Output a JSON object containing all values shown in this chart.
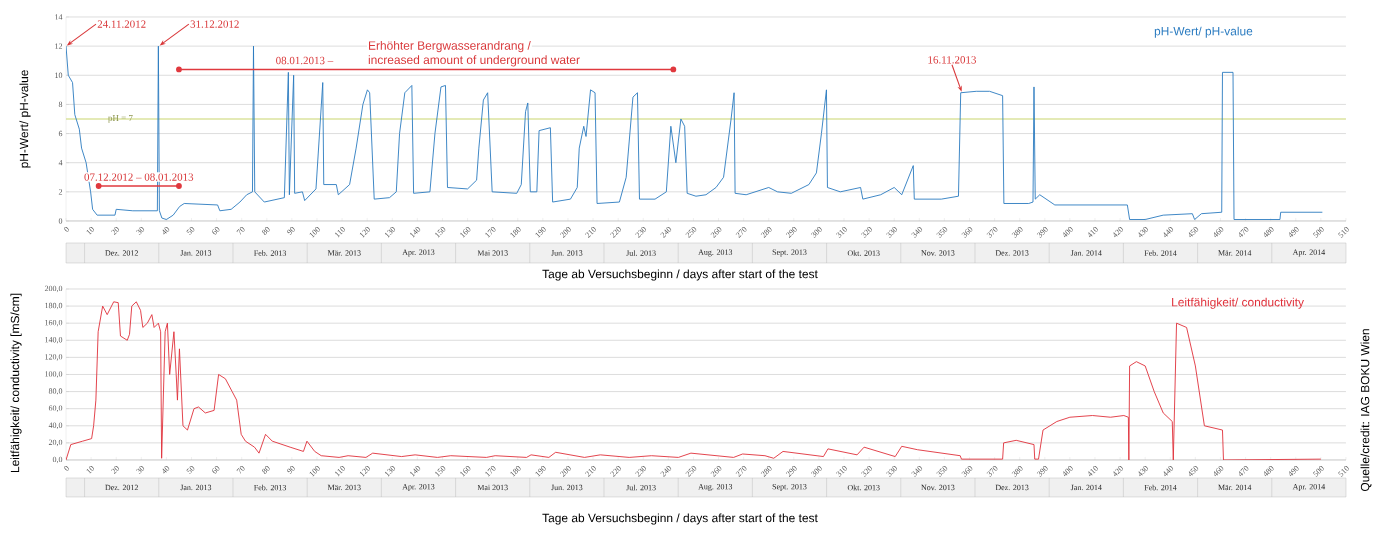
{
  "chart_data": [
    {
      "type": "line",
      "ylabel": "pH-Wert/ pH-value",
      "xlabel": "Tage ab Versuchsbeginn / days after start of the test",
      "xlim": [
        0,
        510
      ],
      "xticks": [
        0,
        10,
        20,
        30,
        40,
        50,
        60,
        70,
        80,
        90,
        100,
        110,
        120,
        130,
        140,
        150,
        160,
        170,
        180,
        190,
        200,
        210,
        220,
        230,
        240,
        250,
        260,
        270,
        280,
        290,
        300,
        310,
        320,
        330,
        340,
        350,
        360,
        370,
        380,
        390,
        400,
        410,
        420,
        430,
        440,
        450,
        460,
        470,
        480,
        490,
        500,
        510
      ],
      "ylim": [
        0,
        14
      ],
      "yticks": [
        0,
        2,
        4,
        6,
        8,
        10,
        12,
        14
      ],
      "grid": "y",
      "ref_lines": [
        {
          "axis": "y",
          "value": 7,
          "label": "pH = 7",
          "color": "#c9d66f"
        }
      ],
      "annotations": [
        {
          "text": "24.11.2012",
          "x": 0,
          "y": 12
        },
        {
          "text": "31.12.2012",
          "x": 37,
          "y": 12
        },
        {
          "text": "16.11.2013",
          "x": 357,
          "y": 8.8
        },
        {
          "text": "07.12.2012 – 08.01.2013",
          "x": 29,
          "y": 2.4
        },
        {
          "text": "08.01.2013 –",
          "x": 95,
          "y": 10.4
        },
        "Erhöhter Bergwasserandrang /",
        "increased amount of underground water",
        "Dez. 2012",
        "Jan. 2013",
        "Feb. 2013",
        "Mär. 2013",
        "Apr. 2013",
        "Mai 2013",
        "Jun. 2013",
        "Jul. 2013",
        "Aug. 2013",
        "Sept. 2013",
        "Okt. 2013",
        "Nov. 2013",
        "Dez. 2013",
        "Jan. 2014",
        "Feb. 2014",
        "Mär. 2014",
        "Apr. 2014"
      ],
      "series": [
        {
          "name": "pH-Wert/ pH-value",
          "color": "#2a7bc0",
          "x": [
            0,
            0.9,
            2.6,
            3.5,
            5.3,
            6.2,
            8,
            9.8,
            10.6,
            12.4,
            19.5,
            20,
            26.6,
            36.4,
            36.8,
            37.2,
            38.2,
            40,
            42.7,
            45.3,
            47.1,
            60.4,
            61.3,
            65.8,
            69.3,
            72,
            74.3,
            74.7,
            75.2,
            79,
            87,
            88.6,
            89,
            90.7,
            91.1,
            94.2,
            95.1,
            99.6,
            102.3,
            102.7,
            107.7,
            108.5,
            113,
            115.6,
            118.3,
            120.1,
            121,
            122.8,
            128.9,
            131.6,
            132.9,
            135,
            137.8,
            138.5,
            145,
            147,
            149.4,
            151.2,
            152,
            160,
            163.6,
            164.5,
            166.3,
            168,
            169.8,
            179.6,
            181.4,
            183.1,
            184,
            185,
            187.6,
            188.5,
            193,
            193.9,
            201,
            203.7,
            204.5,
            206.3,
            207.2,
            209,
            210.8,
            211.6,
            220.5,
            223.2,
            225.9,
            227.7,
            228.5,
            234.7,
            239.2,
            241,
            243,
            245,
            246.5,
            247.5,
            251,
            255,
            259,
            262,
            265,
            266.2,
            266.6,
            271,
            280,
            283.5,
            289,
            296,
            299,
            301,
            303,
            303.4,
            308.5,
            316.6,
            317.5,
            324.6,
            330,
            333,
            337.6,
            338,
            348.8,
            355.6,
            356.5,
            362.7,
            368,
            373.2,
            373.7,
            383.6,
            385.3,
            385.7,
            386.2,
            388,
            394,
            422.9,
            423.8,
            430,
            437.2,
            448.8,
            449.7,
            452.4,
            460.5,
            460.8,
            465,
            465.4,
            483.7,
            484,
            500.6
          ],
          "values": [
            12,
            10,
            9.5,
            7.3,
            6.3,
            5,
            4,
            2,
            0.8,
            0.4,
            0.4,
            0.8,
            0.7,
            0.7,
            12,
            0.7,
            0.2,
            0.1,
            0.4,
            1,
            1.2,
            1.1,
            0.7,
            0.8,
            1.3,
            1.8,
            2,
            12,
            2,
            1.3,
            1.6,
            10.2,
            1.8,
            10,
            1.9,
            2,
            1.4,
            2.2,
            9.5,
            2.5,
            2.5,
            1.8,
            2.5,
            5,
            8,
            9,
            8.8,
            1.5,
            1.6,
            2,
            6,
            8.8,
            9.3,
            1.9,
            2,
            6,
            9.2,
            9.3,
            2.3,
            2.2,
            2.8,
            5,
            8.3,
            8.8,
            2,
            1.9,
            2.5,
            7.5,
            8.1,
            2,
            2,
            6.2,
            6.4,
            1.3,
            1.5,
            2.3,
            5,
            6.5,
            5.8,
            9,
            8.8,
            1.2,
            1.3,
            3,
            8.5,
            8.8,
            1.5,
            1.5,
            2,
            6.5,
            4,
            7,
            6.5,
            1.9,
            1.7,
            1.8,
            2.3,
            3,
            7,
            8.8,
            1.9,
            1.8,
            2.3,
            2,
            1.9,
            2.5,
            3.3,
            6,
            9,
            2.3,
            2,
            2.3,
            1.5,
            1.8,
            2.3,
            1.8,
            3.8,
            1.5,
            1.5,
            1.7,
            8.8,
            8.9,
            8.9,
            8.6,
            1.2,
            1.2,
            1.3,
            9.2,
            1.5,
            1.8,
            1.1,
            1.1,
            0.1,
            0.1,
            0.4,
            0.5,
            0.1,
            0.5,
            0.6,
            10.2,
            10.2,
            0.1,
            0.1,
            0.6,
            0.6
          ]
        },
        {
          "color": "#e0383e",
          "marker": "circle",
          "x": [
            13,
            45
          ],
          "values": [
            2.4,
            2.4
          ]
        },
        {
          "color": "#e0383e",
          "marker": "circle",
          "x": [
            45,
            242
          ],
          "values": [
            10.4,
            10.4
          ]
        }
      ]
    },
    {
      "type": "line",
      "ylabel": "Leitfähigkeit/ conductivity [mS/cm]",
      "xlabel": "Tage ab Versuchsbeginn / days after start of the test",
      "xlim": [
        0,
        510
      ],
      "xticks": [
        0,
        10,
        20,
        30,
        40,
        50,
        60,
        70,
        80,
        90,
        100,
        110,
        120,
        130,
        140,
        150,
        160,
        170,
        180,
        190,
        200,
        210,
        220,
        230,
        240,
        250,
        260,
        270,
        280,
        290,
        300,
        310,
        320,
        330,
        340,
        350,
        360,
        370,
        380,
        390,
        400,
        410,
        420,
        430,
        440,
        450,
        460,
        470,
        480,
        490,
        500,
        510
      ],
      "ylim": [
        0,
        200
      ],
      "yticks": [
        {
          "value": 0,
          "label": "0,0"
        },
        {
          "value": 20,
          "label": "20,0"
        },
        {
          "value": 40,
          "label": "40,0"
        },
        {
          "value": 60,
          "label": "60,0"
        },
        {
          "value": 80,
          "label": "80,0"
        },
        {
          "value": 100,
          "label": "100,0"
        },
        {
          "value": 120,
          "label": "120,0"
        },
        {
          "value": 140,
          "label": "140,0"
        },
        {
          "value": 160,
          "label": "160,0"
        },
        {
          "value": 180,
          "label": "180,0"
        },
        {
          "value": 200,
          "label": "200,0"
        }
      ],
      "grid": "y",
      "annotations": [
        "Quelle/credit: IAG BOKU Wien",
        "Dez. 2012",
        "Jan. 2013",
        "Feb. 2013",
        "Mär. 2013",
        "Apr. 2013",
        "Mai 2013",
        "Jun. 2013",
        "Jul. 2013",
        "Aug. 2013",
        "Sept. 2013",
        "Okt. 2013",
        "Nov. 2013",
        "Dez. 2013",
        "Jan. 2014",
        "Feb. 2014",
        "Mär. 2014",
        "Apr. 2014"
      ],
      "series": [
        {
          "name": "Leitfähigkeit/ conductivity",
          "color": "#e0303a",
          "x": [
            0,
            1.9,
            6.6,
            10.2,
            11,
            11.9,
            12.8,
            14.6,
            16.4,
            19,
            20.8,
            21.7,
            24.4,
            25.3,
            26.2,
            28,
            29.7,
            30.6,
            32.4,
            34.2,
            35.1,
            36.8,
            37.7,
            38.1,
            39.5,
            40.4,
            41.3,
            43,
            43.9,
            44.4,
            45.2,
            46.6,
            48.4,
            51,
            52.8,
            55.5,
            59,
            60.8,
            63.5,
            66.2,
            68,
            69.8,
            71.5,
            75.1,
            76.9,
            79.5,
            82.2,
            89.3,
            94.6,
            96,
            99.1,
            101.7,
            108.8,
            112.4,
            119.5,
            122.2,
            133.7,
            139.1,
            148,
            153.3,
            167.5,
            171,
            183.5,
            185.3,
            192.4,
            195.1,
            206.6,
            212.9,
            224.4,
            233.3,
            244,
            249,
            266,
            269.6,
            278.5,
            282,
            285.7,
            301.8,
            303.6,
            315.2,
            318,
            330.4,
            333,
            339.3,
            356.3,
            356.8,
            373.2,
            373.6,
            378.6,
            385.7,
            386,
            387.5,
            389.3,
            394.8,
            400,
            409,
            416.2,
            421.5,
            423.3,
            423.5,
            423.8,
            426.5,
            430,
            433.6,
            437.2,
            440.8,
            441.2,
            442.5,
            446.5,
            450,
            453.6,
            460.8,
            461.2,
            500
          ],
          "values": [
            0,
            18,
            22,
            25,
            40,
            70,
            150,
            180,
            170,
            185,
            184,
            145,
            140,
            147,
            180,
            185,
            175,
            155,
            160,
            170,
            155,
            160,
            150,
            2,
            150,
            160,
            100,
            150,
            100,
            70,
            130,
            40,
            35,
            60,
            62,
            55,
            58,
            100,
            95,
            80,
            70,
            30,
            22,
            15,
            8,
            30,
            22,
            15,
            10,
            22,
            10,
            5,
            3,
            5,
            3,
            8,
            4,
            6,
            3,
            5,
            3,
            5,
            3,
            6,
            3,
            9,
            3,
            6,
            3,
            5,
            3,
            8,
            3,
            7,
            5,
            2,
            10,
            4,
            13,
            6,
            15,
            4,
            16,
            12,
            5,
            1,
            1,
            20,
            23,
            18,
            1,
            1,
            35,
            45,
            50,
            52,
            50,
            52,
            50,
            0,
            110,
            115,
            110,
            80,
            55,
            45,
            0,
            160,
            155,
            110,
            40,
            35,
            0,
            1
          ]
        }
      ]
    }
  ]
}
